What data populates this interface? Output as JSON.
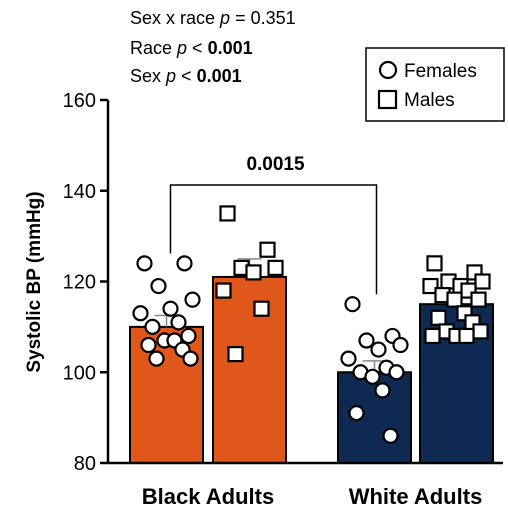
{
  "annotations": {
    "interaction": {
      "prefix": "Sex x race ",
      "p": "p",
      "rel": " = ",
      "value": "0.351"
    },
    "race": {
      "prefix": "Race ",
      "p": "p",
      "rel": " < ",
      "value": "0.001"
    },
    "sex": {
      "prefix": "Sex ",
      "p": "p",
      "rel": " < ",
      "value": "0.001"
    }
  },
  "colors": {
    "black_adults": "#e0571b",
    "white_adults": "#0f2a52"
  },
  "chart_data": {
    "type": "bar",
    "ylabel": "Systolic BP (mmHg)",
    "ylim": [
      80,
      160
    ],
    "yticks": [
      80,
      100,
      120,
      140,
      160
    ],
    "categories": [
      "Black Adults",
      "White Adults"
    ],
    "legend": {
      "position": "top-right",
      "entries": [
        {
          "label": "Females",
          "marker": "circle"
        },
        {
          "label": "Males",
          "marker": "square"
        }
      ]
    },
    "comparison": {
      "label": "0.0015",
      "from": "Black Adults Females",
      "to": "White Adults Females"
    },
    "bars": [
      {
        "group": "Black Adults",
        "sex": "Females",
        "mean": 110,
        "sem": 2.5,
        "points": [
          124,
          124,
          119,
          116,
          114,
          113,
          111,
          110,
          108,
          107,
          107,
          106,
          105,
          103,
          103
        ]
      },
      {
        "group": "Black Adults",
        "sex": "Males",
        "mean": 121,
        "sem": 4,
        "points": [
          135,
          127,
          123,
          123,
          122,
          118,
          114,
          104
        ]
      },
      {
        "group": "White Adults",
        "sex": "Females",
        "mean": 100,
        "sem": 2.5,
        "points": [
          115,
          108,
          107,
          106,
          105,
          103,
          101,
          100,
          100,
          99,
          96,
          91,
          86
        ]
      },
      {
        "group": "White Adults",
        "sex": "Males",
        "mean": 115,
        "sem": 1.5,
        "points": [
          124,
          122,
          120,
          120,
          119,
          119,
          118,
          117,
          116,
          116,
          113,
          112,
          111,
          109,
          109,
          108,
          108,
          108
        ]
      }
    ]
  }
}
